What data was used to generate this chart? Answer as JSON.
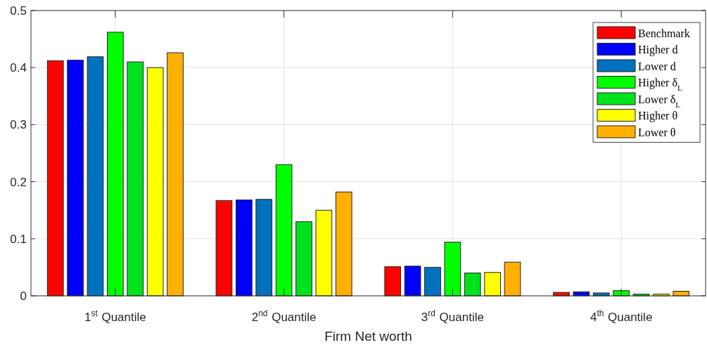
{
  "chart_data": {
    "type": "bar",
    "xlabel": "Firm Net worth",
    "categories": [
      "1$^{st}$ Quantile",
      "2$^{nd}$ Quantile",
      "3$^{rd}$ Quantile",
      "4$^{th}$ Quantile"
    ],
    "series": [
      {
        "name": "Benchmark",
        "color": "#ff0000",
        "values": [
          0.412,
          0.167,
          0.051,
          0.006
        ]
      },
      {
        "name": "Higher d",
        "color": "#0000ff",
        "values": [
          0.413,
          0.168,
          0.052,
          0.007
        ]
      },
      {
        "name": "Lower d",
        "color": "#0072bd",
        "values": [
          0.419,
          0.169,
          0.05,
          0.005
        ]
      },
      {
        "name": "Higher δ$_{L}$",
        "color": "#00ff00",
        "values": [
          0.462,
          0.23,
          0.094,
          0.009
        ]
      },
      {
        "name": "Lower δ$_{L}$",
        "color": "#00e31c",
        "values": [
          0.41,
          0.13,
          0.04,
          0.003
        ]
      },
      {
        "name": "Higher θ",
        "color": "#ffff00",
        "values": [
          0.4,
          0.15,
          0.041,
          0.003
        ]
      },
      {
        "name": "Lower θ",
        "color": "#ffb000",
        "values": [
          0.426,
          0.182,
          0.059,
          0.008
        ]
      }
    ],
    "ylim": [
      0,
      0.5
    ],
    "yticks": [
      0,
      0.1,
      0.2,
      0.3,
      0.4,
      0.5
    ],
    "grid": true,
    "legend": "top right"
  }
}
